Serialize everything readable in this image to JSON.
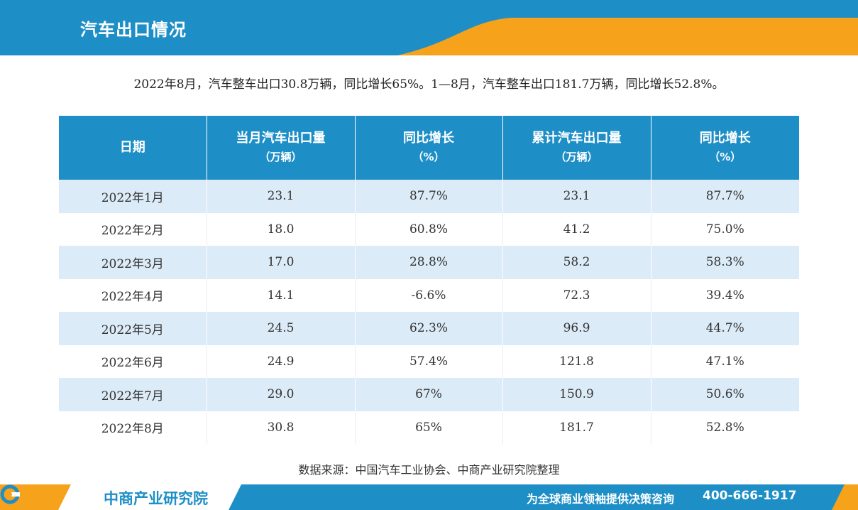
{
  "header": {
    "title": "汽车出口情况"
  },
  "summary": "2022年8月，汽车整车出口30.8万辆，同比增长65%。1—8月，汽车整车出口181.7万辆，同比增长52.8%。",
  "table": {
    "headers": [
      {
        "line1": "日期",
        "line2": ""
      },
      {
        "line1": "当月汽车出口量",
        "line2": "（万辆）"
      },
      {
        "line1": "同比增长",
        "line2": "（%）"
      },
      {
        "line1": "累计汽车出口量",
        "line2": "（万辆）"
      },
      {
        "line1": "同比增长",
        "line2": "（%）"
      }
    ],
    "rows": [
      [
        "2022年1月",
        "23.1",
        "87.7%",
        "23.1",
        "87.7%"
      ],
      [
        "2022年2月",
        "18.0",
        "60.8%",
        "41.2",
        "75.0%"
      ],
      [
        "2022年3月",
        "17.0",
        "28.8%",
        "58.2",
        "58.3%"
      ],
      [
        "2022年4月",
        "14.1",
        "-6.6%",
        "72.3",
        "39.4%"
      ],
      [
        "2022年5月",
        "24.5",
        "62.3%",
        "96.9",
        "44.7%"
      ],
      [
        "2022年6月",
        "24.9",
        "57.4%",
        "121.8",
        "47.1%"
      ],
      [
        "2022年7月",
        "29.0",
        "67%",
        "150.9",
        "50.6%"
      ],
      [
        "2022年8月",
        "30.8",
        "65%",
        "181.7",
        "52.8%"
      ]
    ]
  },
  "source": "数据来源：中国汽车工业协会、中商产业研究院整理",
  "footer": {
    "logo_text": "中商产业研究院",
    "slogan": "为全球商业领袖提供决策咨询",
    "phone": "400-666-1917",
    "logo_icon": "logo-c-icon"
  },
  "colors": {
    "brand_blue": "#1e8fc6",
    "accent_orange": "#f7a21b",
    "row_tint": "#dcebf8"
  }
}
